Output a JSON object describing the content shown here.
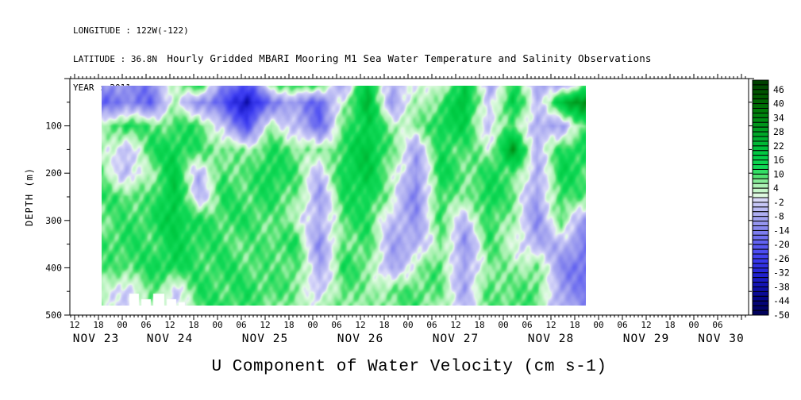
{
  "header": {
    "longitude": "LONGITUDE : 122W(-122)",
    "latitude": "LATITUDE : 36.8N",
    "year": "YEAR : 2011"
  },
  "plot": {
    "title": "Hourly Gridded MBARI Mooring M1 Sea Water Temperature and Salinity Observations",
    "y_axis_title": "DEPTH (m)",
    "x_axis_title": "U Component of Water Velocity (cm s-1)"
  },
  "chart_data": {
    "type": "heatmap",
    "title": "Hourly Gridded MBARI Mooring M1 Sea Water Temperature and Salinity Observations",
    "variable_label": "U Component of Water Velocity (cm s-1)",
    "ylabel": "DEPTH (m)",
    "units": "cm s-1",
    "time_axis": {
      "start_hour": 10.8,
      "end_hour": 181.8,
      "minor_tick_step": 1,
      "major_tick_step": 6,
      "first_labeled_hour": 12,
      "hour_labels": [
        "12",
        "18",
        "00",
        "06",
        "12",
        "18",
        "00",
        "06",
        "12",
        "18",
        "00",
        "06",
        "12",
        "18",
        "00",
        "06",
        "12",
        "18",
        "00",
        "06",
        "12",
        "18",
        "00",
        "06",
        "12",
        "18",
        "00",
        "06"
      ],
      "date_labels": [
        "NOV 23",
        "NOV 24",
        "NOV 25",
        "NOV 26",
        "NOV 27",
        "NOV 28",
        "NOV 29",
        "NOV 30"
      ]
    },
    "depth_axis": {
      "min": 0,
      "max": 500,
      "minor_tick_step": 50,
      "label_step": 100,
      "tick_labels": [
        "100",
        "200",
        "300",
        "400",
        "500"
      ]
    },
    "colorbar": {
      "min": -50,
      "max": 50,
      "segment_size": 2,
      "tick_labels": [
        "46",
        "40",
        "34",
        "28",
        "22",
        "16",
        "10",
        "4",
        "-2",
        "-8",
        "-14",
        "-20",
        "-26",
        "-32",
        "-38",
        "-44",
        "-50"
      ]
    },
    "color_scale": [
      [
        -50,
        "#000055"
      ],
      [
        -44,
        "#03037e"
      ],
      [
        -38,
        "#1111ad"
      ],
      [
        -32,
        "#2424d6"
      ],
      [
        -26,
        "#3c3cf0"
      ],
      [
        -20,
        "#5c5cf2"
      ],
      [
        -14,
        "#8282ee"
      ],
      [
        -8,
        "#a8a8f0"
      ],
      [
        -3,
        "#c6c6f6"
      ],
      [
        -0.5,
        "#dedef9"
      ],
      [
        0.5,
        "#e4fae6"
      ],
      [
        3,
        "#c6f6ca"
      ],
      [
        6,
        "#a0f0aa"
      ],
      [
        9,
        "#52e271"
      ],
      [
        13,
        "#12d957"
      ],
      [
        18,
        "#00cc44"
      ],
      [
        24,
        "#00b432"
      ],
      [
        30,
        "#009a1e"
      ],
      [
        36,
        "#00800a"
      ],
      [
        42,
        "#006000"
      ],
      [
        50,
        "#003c00"
      ]
    ],
    "grid": {
      "t_start": 18.8,
      "t_end": 140.8,
      "columns": 21,
      "depths": [
        15,
        50,
        100,
        150,
        200,
        250,
        300,
        350,
        400,
        450,
        480
      ],
      "values": [
        [
          -10,
          -12,
          -15,
          5,
          12,
          -12,
          -25,
          5,
          12,
          8,
          -8,
          20,
          -8,
          3,
          0,
          20,
          -8,
          12,
          -6,
          -8,
          10
        ],
        [
          -18,
          -14,
          -18,
          3,
          -12,
          -20,
          -38,
          -15,
          -10,
          -20,
          5,
          22,
          -10,
          5,
          8,
          22,
          -5,
          18,
          -5,
          20,
          35
        ],
        [
          3,
          15,
          8,
          10,
          12,
          -5,
          -22,
          5,
          -5,
          -18,
          8,
          18,
          5,
          5,
          15,
          15,
          -3,
          10,
          -8,
          -8,
          8
        ],
        [
          5,
          -6,
          12,
          15,
          10,
          8,
          5,
          12,
          8,
          5,
          12,
          20,
          8,
          -8,
          12,
          10,
          3,
          28,
          -5,
          12,
          15
        ],
        [
          8,
          -6,
          5,
          18,
          -6,
          10,
          8,
          15,
          10,
          -5,
          15,
          18,
          5,
          -12,
          15,
          8,
          12,
          10,
          -8,
          15,
          10
        ],
        [
          10,
          10,
          8,
          20,
          -6,
          12,
          10,
          12,
          8,
          -10,
          12,
          15,
          3,
          -15,
          12,
          5,
          15,
          8,
          -10,
          12,
          8
        ],
        [
          8,
          10,
          12,
          18,
          12,
          10,
          12,
          8,
          5,
          -8,
          10,
          12,
          -5,
          -10,
          10,
          -5,
          12,
          5,
          -12,
          8,
          -10
        ],
        [
          10,
          12,
          10,
          15,
          12,
          10,
          8,
          10,
          12,
          -12,
          8,
          10,
          -8,
          -8,
          8,
          -12,
          10,
          3,
          -8,
          -5,
          -15
        ],
        [
          8,
          10,
          12,
          15,
          10,
          12,
          10,
          8,
          10,
          -8,
          12,
          8,
          -10,
          5,
          10,
          -10,
          8,
          5,
          8,
          -12,
          -18
        ],
        [
          5,
          -5,
          10,
          -3,
          12,
          10,
          12,
          10,
          8,
          -5,
          10,
          5,
          8,
          10,
          8,
          -8,
          10,
          8,
          10,
          -10,
          -15
        ],
        [
          5,
          -3,
          8,
          -5,
          10,
          12,
          10,
          8,
          5,
          3,
          8,
          5,
          8,
          10,
          5,
          -5,
          8,
          10,
          8,
          -8,
          -12
        ]
      ]
    },
    "nodata_blocks": [
      {
        "t0": 25.8,
        "t1": 28.2,
        "d0": 455,
        "d1": 480
      },
      {
        "t0": 28.8,
        "t1": 31.2,
        "d0": 467,
        "d1": 480
      },
      {
        "t0": 31.8,
        "t1": 34.6,
        "d0": 455,
        "d1": 480
      },
      {
        "t0": 35.2,
        "t1": 37.6,
        "d0": 467,
        "d1": 480
      },
      {
        "t0": 38.2,
        "t1": 39.8,
        "d0": 473,
        "d1": 480
      }
    ]
  }
}
